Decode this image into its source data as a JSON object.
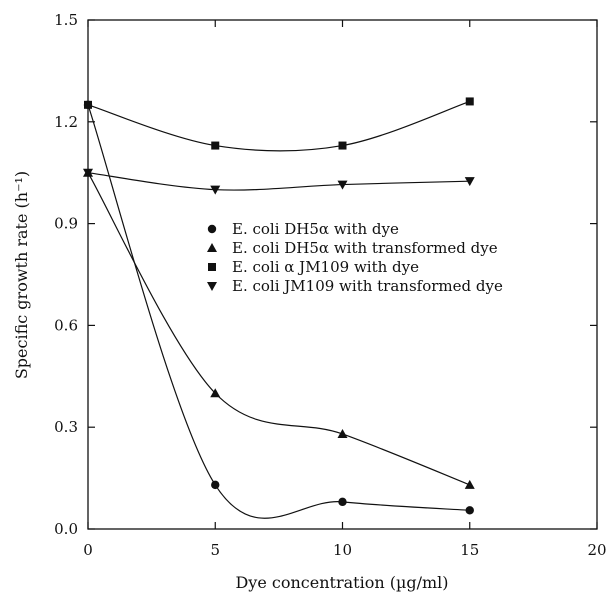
{
  "chart_data": {
    "type": "line",
    "xlabel": "Dye concentration (µg/ml)",
    "ylabel": "Specific growth rate (h⁻¹)",
    "xlim": [
      0,
      20
    ],
    "ylim": [
      0.0,
      1.5
    ],
    "xticks": [
      0,
      5,
      10,
      15,
      20
    ],
    "xtick_labels": [
      "0",
      "5",
      "10",
      "15",
      "20"
    ],
    "yticks": [
      0.0,
      0.3,
      0.6,
      0.9,
      1.2,
      1.5
    ],
    "ytick_labels": [
      "0.0",
      "0.3",
      "0.6",
      "0.9",
      "1.2",
      "1.5"
    ],
    "grid": false,
    "legend_position": "center-right",
    "x": [
      0,
      5,
      10,
      15
    ],
    "series": [
      {
        "name": "E. coli DH5α with dye",
        "marker": "circle",
        "values": [
          1.25,
          0.13,
          0.08,
          0.055
        ]
      },
      {
        "name": "E. coli DH5α with transformed dye",
        "marker": "triangle-up",
        "values": [
          1.05,
          0.4,
          0.28,
          0.13
        ]
      },
      {
        "name": "E. coli α JM109 with dye",
        "marker": "square",
        "values": [
          1.25,
          1.13,
          1.13,
          1.26
        ]
      },
      {
        "name": "E. coli JM109 with transformed dye",
        "marker": "triangle-down",
        "values": [
          1.05,
          1.0,
          1.015,
          1.025
        ]
      }
    ]
  }
}
